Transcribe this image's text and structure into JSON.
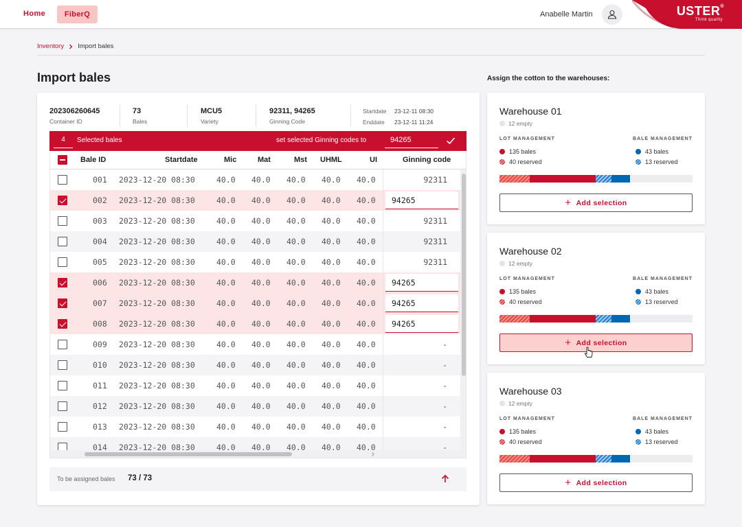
{
  "topbar": {
    "nav": [
      {
        "label": "Home"
      },
      {
        "label": "FiberQ"
      }
    ],
    "user_name": "Anabelle Martin",
    "brand": {
      "name": "USTER",
      "mark": "®",
      "tagline": "Think quality"
    }
  },
  "breadcrumb": {
    "link": "Inventory",
    "current": "Import bales"
  },
  "page_title": "Import bales",
  "assign_title": "Assign the cotton to the warehouses:",
  "container": {
    "id": {
      "value": "202306260645",
      "label": "Container ID"
    },
    "bales": {
      "value": "73",
      "label": "Bales"
    },
    "variety": {
      "value": "MCU5",
      "label": "Variety"
    },
    "ginning": {
      "value": "92311, 94265",
      "label": "Ginning Code"
    },
    "startdate": {
      "label": "Startdate",
      "value": "23-12-11 08:30"
    },
    "enddate": {
      "label": "Enddate",
      "value": "23-12-11 11:24"
    }
  },
  "selection": {
    "count": "4",
    "label": "Selected bales",
    "set_label": "set selected Ginning codes to",
    "input_value": "94265"
  },
  "table": {
    "headers": {
      "bale_id": "Bale ID",
      "startdate": "Startdate",
      "mic": "Mic",
      "mat": "Mat",
      "mst": "Mst",
      "uhml": "UHML",
      "ui": "UI",
      "ginning": "Ginning code"
    },
    "rows": [
      {
        "id": "001",
        "date": "2023-12-20 08:30",
        "mic": "40.0",
        "mat": "40.0",
        "mst": "40.0",
        "uhml": "40.0",
        "ui": "40.0",
        "gc": "92311",
        "selected": false
      },
      {
        "id": "002",
        "date": "2023-12-20 08:30",
        "mic": "40.0",
        "mat": "40.0",
        "mst": "40.0",
        "uhml": "40.0",
        "ui": "40.0",
        "gc": "94265",
        "selected": true
      },
      {
        "id": "003",
        "date": "2023-12-20 08:30",
        "mic": "40.0",
        "mat": "40.0",
        "mst": "40.0",
        "uhml": "40.0",
        "ui": "40.0",
        "gc": "92311",
        "selected": false
      },
      {
        "id": "004",
        "date": "2023-12-20 08:30",
        "mic": "40.0",
        "mat": "40.0",
        "mst": "40.0",
        "uhml": "40.0",
        "ui": "40.0",
        "gc": "92311",
        "selected": false
      },
      {
        "id": "005",
        "date": "2023-12-20 08:30",
        "mic": "40.0",
        "mat": "40.0",
        "mst": "40.0",
        "uhml": "40.0",
        "ui": "40.0",
        "gc": "92311",
        "selected": false
      },
      {
        "id": "006",
        "date": "2023-12-20 08:30",
        "mic": "40.0",
        "mat": "40.0",
        "mst": "40.0",
        "uhml": "40.0",
        "ui": "40.0",
        "gc": "94265",
        "selected": true
      },
      {
        "id": "007",
        "date": "2023-12-20 08:30",
        "mic": "40.0",
        "mat": "40.0",
        "mst": "40.0",
        "uhml": "40.0",
        "ui": "40.0",
        "gc": "94265",
        "selected": true
      },
      {
        "id": "008",
        "date": "2023-12-20 08:30",
        "mic": "40.0",
        "mat": "40.0",
        "mst": "40.0",
        "uhml": "40.0",
        "ui": "40.0",
        "gc": "94265",
        "selected": true
      },
      {
        "id": "009",
        "date": "2023-12-20 08:30",
        "mic": "40.0",
        "mat": "40.0",
        "mst": "40.0",
        "uhml": "40.0",
        "ui": "40.0",
        "gc": "-",
        "selected": false
      },
      {
        "id": "010",
        "date": "2023-12-20 08:30",
        "mic": "40.0",
        "mat": "40.0",
        "mst": "40.0",
        "uhml": "40.0",
        "ui": "40.0",
        "gc": "-",
        "selected": false
      },
      {
        "id": "011",
        "date": "2023-12-20 08:30",
        "mic": "40.0",
        "mat": "40.0",
        "mst": "40.0",
        "uhml": "40.0",
        "ui": "40.0",
        "gc": "-",
        "selected": false
      },
      {
        "id": "012",
        "date": "2023-12-20 08:30",
        "mic": "40.0",
        "mat": "40.0",
        "mst": "40.0",
        "uhml": "40.0",
        "ui": "40.0",
        "gc": "-",
        "selected": false
      },
      {
        "id": "013",
        "date": "2023-12-20 08:30",
        "mic": "40.0",
        "mat": "40.0",
        "mst": "40.0",
        "uhml": "40.0",
        "ui": "40.0",
        "gc": "-",
        "selected": false
      },
      {
        "id": "014",
        "date": "2023-12-20 08:30",
        "mic": "40.0",
        "mat": "40.0",
        "mst": "40.0",
        "uhml": "40.0",
        "ui": "40.0",
        "gc": "-",
        "selected": false
      }
    ]
  },
  "footer": {
    "label": "To be assigned bales",
    "value": "73 / 73"
  },
  "warehouses": [
    {
      "title": "Warehouse 01",
      "empty": "12 empty",
      "lot_heading": "LOT MANAGEMENT",
      "bale_heading": "BALE MANAGEMENT",
      "lot_bales": "135 bales",
      "lot_reserved": "40 reserved",
      "bale_bales": "43 bales",
      "bale_reserved": "13 reserved",
      "button": "Add selection"
    },
    {
      "title": "Warehouse 02",
      "empty": "12 empty",
      "lot_heading": "LOT MANAGEMENT",
      "bale_heading": "BALE MANAGEMENT",
      "lot_bales": "135 bales",
      "lot_reserved": "40 reserved",
      "bale_bales": "43 bales",
      "bale_reserved": "13 reserved",
      "button": "Add selection"
    },
    {
      "title": "Warehouse 03",
      "empty": "12 empty",
      "lot_heading": "LOT MANAGEMENT",
      "bale_heading": "BALE MANAGEMENT",
      "lot_bales": "135 bales",
      "lot_reserved": "40 reserved",
      "bale_bales": "43 bales",
      "bale_reserved": "13 reserved",
      "button": "Add selection"
    }
  ],
  "colors": {
    "accent": "#c8102e",
    "blue": "#0068b3",
    "selected_row": "#fde5e5"
  },
  "icons": [
    "user-icon",
    "chevron-right-icon",
    "check-icon",
    "arrow-up-icon",
    "plus-icon",
    "cursor-icon"
  ]
}
